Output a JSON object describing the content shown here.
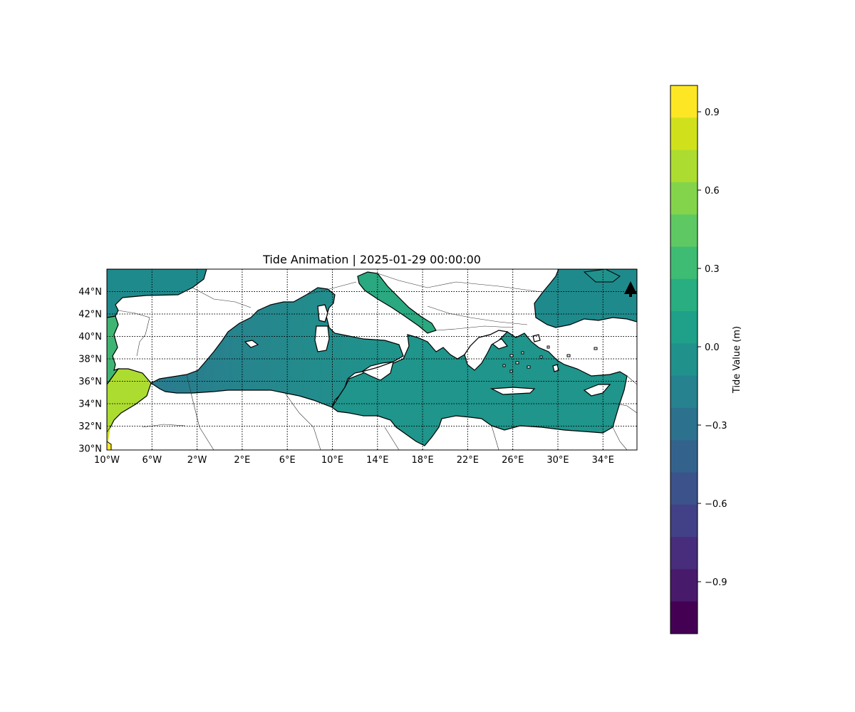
{
  "map": {
    "title": "Tide Animation | 2025-01-29 00:00:00",
    "lon_ticks": [
      "10°W",
      "6°W",
      "2°W",
      "2°E",
      "6°E",
      "10°E",
      "14°E",
      "18°E",
      "22°E",
      "26°E",
      "30°E",
      "34°E"
    ],
    "lat_ticks": [
      "44°N",
      "42°N",
      "40°N",
      "38°N",
      "36°N",
      "34°N",
      "32°N",
      "30°N"
    ],
    "extent": {
      "lon_min": -10,
      "lon_max": 37,
      "lat_min": 30,
      "lat_max": 46
    },
    "gridlines": "dotted",
    "north_arrow": "north-arrow-icon",
    "land_color": "#ffffff",
    "coast_color": "#000000"
  },
  "colorbar": {
    "label": "Tide Value (m)",
    "ticks": [
      "0.9",
      "0.6",
      "0.3",
      "0.0",
      "−0.3",
      "−0.6",
      "−0.9"
    ],
    "range": [
      -1.1,
      1.0
    ],
    "colormap": "viridis",
    "levels": [
      "#fde725",
      "#d0e11c",
      "#addc30",
      "#84d44b",
      "#5ec962",
      "#3fbc73",
      "#28ae80",
      "#1fa088",
      "#21918c",
      "#26828e",
      "#2c728e",
      "#33638d",
      "#3b528b",
      "#424086",
      "#472d7b",
      "#481a6c",
      "#440154"
    ]
  }
}
